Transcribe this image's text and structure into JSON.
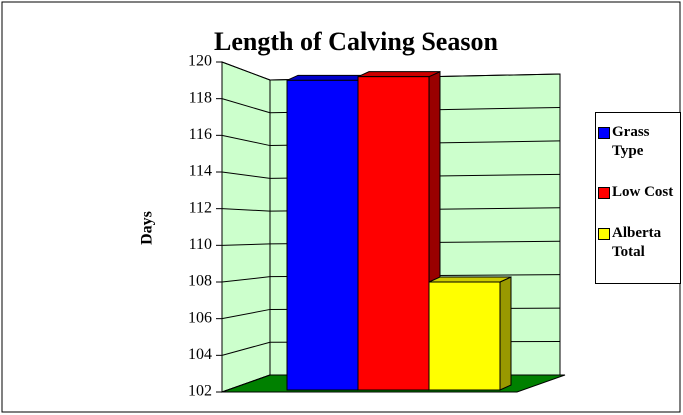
{
  "chart_data": {
    "type": "bar3d",
    "title": "Length of Calving Season",
    "y_label": "Days",
    "ylim": [
      102,
      120
    ],
    "yticks": [
      102,
      104,
      106,
      108,
      110,
      112,
      114,
      116,
      118,
      120
    ],
    "grid": true,
    "legend": "right",
    "series": [
      {
        "name": "Grass Type",
        "color": "#0000ff",
        "values": [
          119
        ]
      },
      {
        "name": "Low Cost",
        "color": "#ff0000",
        "values": [
          119.2
        ]
      },
      {
        "name": "Alberta Total",
        "color": "#ffff00",
        "values": [
          108
        ]
      }
    ]
  }
}
